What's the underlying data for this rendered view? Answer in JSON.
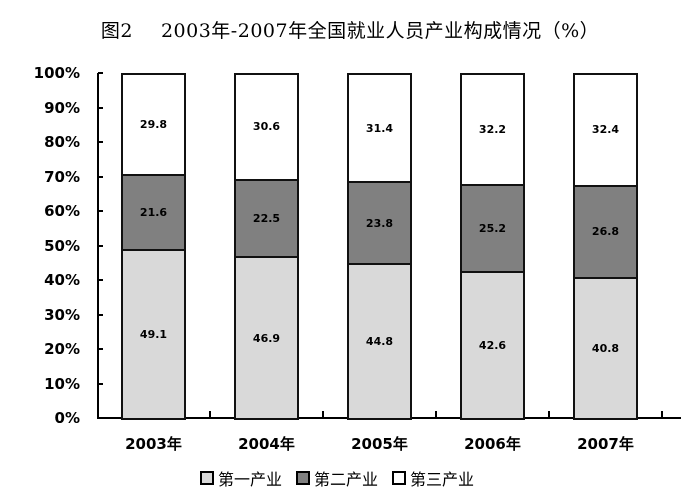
{
  "title": {
    "figure_label": "图2",
    "text": "2003年-2007年全国就业人员产业构成情况（%）"
  },
  "chart_data": {
    "type": "bar",
    "stacked": true,
    "percent": true,
    "title": "图2    2003年-2007年全国就业人员产业构成情况（%）",
    "xlabel": "",
    "ylabel": "",
    "ylim": [
      0,
      100
    ],
    "yticks": [
      "0%",
      "10%",
      "20%",
      "30%",
      "40%",
      "50%",
      "60%",
      "70%",
      "80%",
      "90%",
      "100%"
    ],
    "categories": [
      "2003年",
      "2004年",
      "2005年",
      "2006年",
      "2007年"
    ],
    "series": [
      {
        "name": "第一产业",
        "color": "#d9d9d9",
        "values": [
          49.1,
          46.9,
          44.8,
          42.6,
          40.8
        ]
      },
      {
        "name": "第二产业",
        "color": "#808080",
        "values": [
          21.6,
          22.5,
          23.8,
          25.2,
          26.8
        ]
      },
      {
        "name": "第三产业",
        "color": "#ffffff",
        "values": [
          29.8,
          30.6,
          31.4,
          32.2,
          32.4
        ]
      }
    ],
    "grid": false,
    "legend_position": "bottom"
  },
  "legend": {
    "items": [
      {
        "label": "第一产业",
        "color": "#d9d9d9"
      },
      {
        "label": "第二产业",
        "color": "#808080"
      },
      {
        "label": "第三产业",
        "color": "#ffffff"
      }
    ]
  }
}
